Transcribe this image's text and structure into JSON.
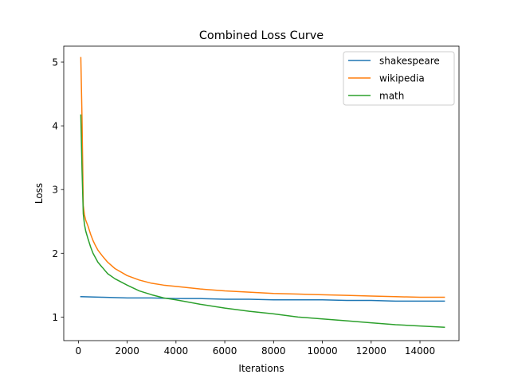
{
  "chart_data": {
    "type": "line",
    "title": "Combined Loss Curve",
    "xlabel": "Iterations",
    "ylabel": "Loss",
    "xlim": [
      -600,
      15600
    ],
    "ylim": [
      0.63,
      5.25
    ],
    "xticks": [
      0,
      2000,
      4000,
      6000,
      8000,
      10000,
      12000,
      14000
    ],
    "yticks": [
      1,
      2,
      3,
      4,
      5
    ],
    "grid": false,
    "legend_position": "top-right",
    "series": [
      {
        "name": "shakespeare",
        "color": "#1f77b4",
        "x": [
          100,
          1000,
          2000,
          3000,
          4000,
          5000,
          6000,
          7000,
          8000,
          9000,
          10000,
          11000,
          12000,
          13000,
          14000,
          15000
        ],
        "y": [
          1.32,
          1.31,
          1.3,
          1.3,
          1.29,
          1.29,
          1.28,
          1.28,
          1.27,
          1.27,
          1.27,
          1.26,
          1.26,
          1.25,
          1.25,
          1.25
        ]
      },
      {
        "name": "wikipedia",
        "color": "#ff7f0e",
        "x": [
          100,
          150,
          200,
          250,
          300,
          400,
          500,
          600,
          700,
          800,
          1000,
          1200,
          1500,
          2000,
          2500,
          3000,
          3500,
          4000,
          5000,
          6000,
          7000,
          8000,
          9000,
          10000,
          11000,
          12000,
          13000,
          14000,
          15000
        ],
        "y": [
          5.07,
          4.1,
          2.75,
          2.6,
          2.52,
          2.42,
          2.3,
          2.2,
          2.12,
          2.05,
          1.95,
          1.86,
          1.76,
          1.65,
          1.58,
          1.53,
          1.5,
          1.48,
          1.44,
          1.41,
          1.39,
          1.37,
          1.36,
          1.35,
          1.34,
          1.33,
          1.32,
          1.31,
          1.31
        ]
      },
      {
        "name": "math",
        "color": "#2ca02c",
        "x": [
          100,
          150,
          200,
          250,
          300,
          400,
          500,
          600,
          700,
          800,
          1000,
          1200,
          1500,
          2000,
          2500,
          3000,
          3500,
          4000,
          5000,
          6000,
          7000,
          8000,
          9000,
          10000,
          11000,
          12000,
          13000,
          14000,
          15000
        ],
        "y": [
          4.17,
          3.3,
          2.62,
          2.45,
          2.35,
          2.22,
          2.1,
          2.0,
          1.93,
          1.86,
          1.77,
          1.68,
          1.6,
          1.5,
          1.41,
          1.35,
          1.3,
          1.27,
          1.2,
          1.14,
          1.09,
          1.05,
          1.0,
          0.97,
          0.94,
          0.91,
          0.88,
          0.86,
          0.84
        ]
      }
    ]
  }
}
